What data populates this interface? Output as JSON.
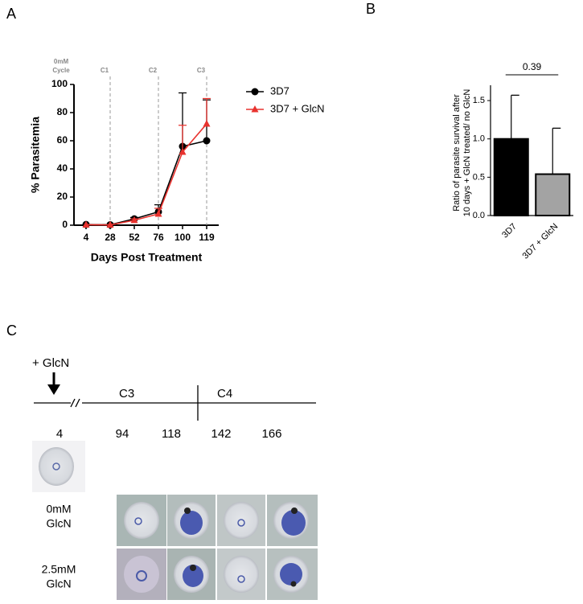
{
  "chart_data": [
    {
      "type": "line",
      "panel": "A",
      "x_label": "Days Post Treatment",
      "y_label": "% Parasitemia",
      "categories": [
        "4",
        "28",
        "52",
        "76",
        "100",
        "119"
      ],
      "cycle_header": [
        "0mM",
        "Cycle"
      ],
      "cycle_markers": [
        {
          "category": "28",
          "label": "C1"
        },
        {
          "category": "76",
          "label": "C2"
        },
        {
          "category": "119",
          "label": "C3"
        }
      ],
      "series": [
        {
          "name": "3D7",
          "color": "#000000",
          "marker": "circle",
          "values": [
            0.5,
            0.3,
            4.5,
            9.5,
            56,
            60
          ],
          "errors": [
            null,
            null,
            1,
            5,
            38,
            29
          ]
        },
        {
          "name": "3D7 + GlcN",
          "color": "#e8322e",
          "marker": "triangle",
          "values": [
            0.3,
            0.2,
            3.5,
            8,
            52,
            72
          ],
          "errors": [
            null,
            null,
            1,
            4,
            19,
            18
          ]
        }
      ],
      "ylim": [
        0,
        100
      ],
      "yticks": [
        0,
        20,
        40,
        60,
        80,
        100
      ]
    },
    {
      "type": "bar",
      "panel": "B",
      "y_label": [
        "Ratio of parasite survival after",
        "10 days + GlcN treated/ no GlcN"
      ],
      "categories": [
        "3D7",
        "3D7 + GlcN"
      ],
      "values": [
        1.0,
        0.54
      ],
      "errors": [
        0.57,
        0.6
      ],
      "colors": [
        "#000000",
        "#a3a3a3"
      ],
      "p_value": 0.39,
      "ylim": [
        0,
        1.7
      ],
      "yticks": [
        {
          "value": 0,
          "label": "0.0"
        },
        {
          "value": 0.5,
          "label": "0.5"
        },
        {
          "value": 1,
          "label": "1.0"
        },
        {
          "value": 1.5,
          "label": "1.5"
        }
      ]
    }
  ],
  "panel_c": {
    "label": "C",
    "treatment": "+ GlcN",
    "cycles": [
      "C3",
      "C4"
    ],
    "timepoints": [
      4,
      94,
      118,
      142,
      166
    ],
    "rows": [
      [
        "0mM",
        "GlcN"
      ],
      [
        "2.5mM",
        "GlcN"
      ]
    ]
  }
}
